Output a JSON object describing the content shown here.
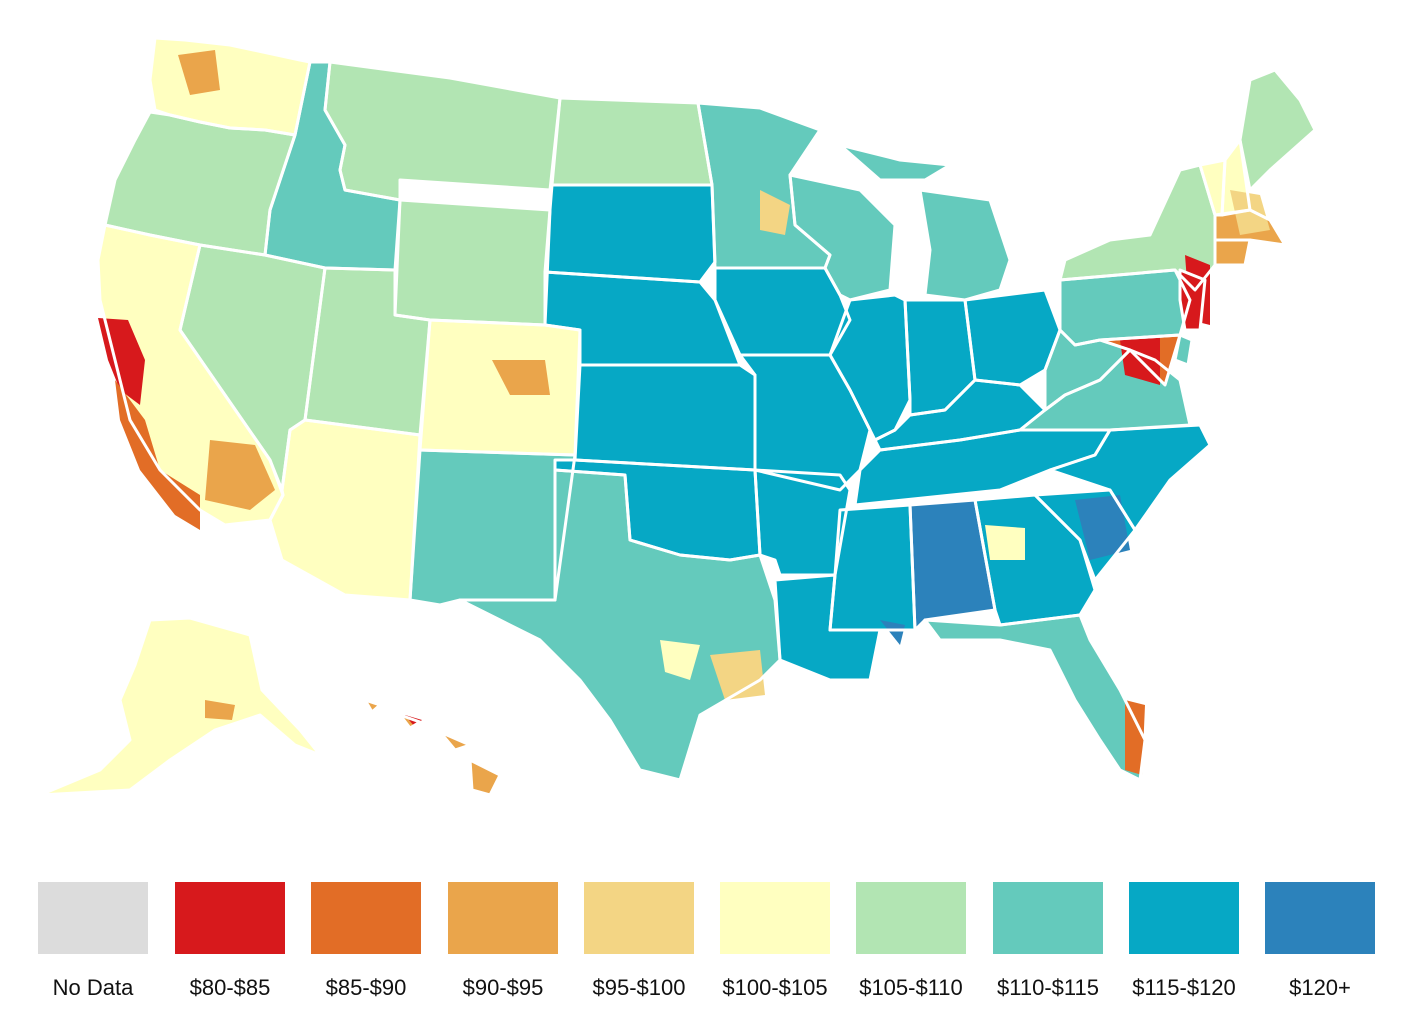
{
  "legend": [
    {
      "label": "No Data",
      "color": "#dcdcdc"
    },
    {
      "label": "$80-$85",
      "color": "#d7191c"
    },
    {
      "label": "$85-$90",
      "color": "#e26d26"
    },
    {
      "label": "$90-$95",
      "color": "#eaa54b"
    },
    {
      "label": "$95-$100",
      "color": "#f3d584"
    },
    {
      "label": "$100-$105",
      "color": "#ffffc0"
    },
    {
      "label": "$105-$110",
      "color": "#b2e5b3"
    },
    {
      "label": "$110-$115",
      "color": "#64cabc"
    },
    {
      "label": "$115-$120",
      "color": "#06a8c5"
    },
    {
      "label": "$120+",
      "color": "#2c82bb"
    }
  ],
  "map": {
    "regions": [
      {
        "name": "Washington",
        "bin": "$100-$105"
      },
      {
        "name": "Oregon",
        "bin": "$105-$110"
      },
      {
        "name": "California",
        "bin": "$100-$105"
      },
      {
        "name": "Nevada",
        "bin": "$105-$110"
      },
      {
        "name": "Idaho",
        "bin": "$110-$115"
      },
      {
        "name": "Montana",
        "bin": "$105-$110"
      },
      {
        "name": "Wyoming",
        "bin": "$105-$110"
      },
      {
        "name": "Utah",
        "bin": "$105-$110"
      },
      {
        "name": "Arizona",
        "bin": "$100-$105"
      },
      {
        "name": "Colorado",
        "bin": "$100-$105"
      },
      {
        "name": "New Mexico",
        "bin": "$110-$115"
      },
      {
        "name": "North Dakota",
        "bin": "$105-$110"
      },
      {
        "name": "South Dakota",
        "bin": "$115-$120"
      },
      {
        "name": "Nebraska",
        "bin": "$115-$120"
      },
      {
        "name": "Kansas",
        "bin": "$115-$120"
      },
      {
        "name": "Oklahoma",
        "bin": "$115-$120"
      },
      {
        "name": "Texas",
        "bin": "$110-$115"
      },
      {
        "name": "Minnesota",
        "bin": "$110-$115"
      },
      {
        "name": "Iowa",
        "bin": "$115-$120"
      },
      {
        "name": "Missouri",
        "bin": "$115-$120"
      },
      {
        "name": "Arkansas",
        "bin": "$115-$120"
      },
      {
        "name": "Louisiana",
        "bin": "$115-$120"
      },
      {
        "name": "Wisconsin",
        "bin": "$110-$115"
      },
      {
        "name": "Illinois",
        "bin": "$115-$120"
      },
      {
        "name": "Michigan",
        "bin": "$110-$115"
      },
      {
        "name": "Indiana",
        "bin": "$115-$120"
      },
      {
        "name": "Ohio",
        "bin": "$115-$120"
      },
      {
        "name": "Kentucky",
        "bin": "$115-$120"
      },
      {
        "name": "Tennessee",
        "bin": "$115-$120"
      },
      {
        "name": "Mississippi",
        "bin": "$115-$120"
      },
      {
        "name": "Alabama",
        "bin": "$120+"
      },
      {
        "name": "Georgia",
        "bin": "$115-$120"
      },
      {
        "name": "Florida",
        "bin": "$110-$115"
      },
      {
        "name": "South Carolina",
        "bin": "$115-$120"
      },
      {
        "name": "North Carolina",
        "bin": "$115-$120"
      },
      {
        "name": "Virginia",
        "bin": "$110-$115"
      },
      {
        "name": "West Virginia",
        "bin": "$110-$115"
      },
      {
        "name": "Pennsylvania",
        "bin": "$110-$115"
      },
      {
        "name": "New York",
        "bin": "$105-$110"
      },
      {
        "name": "Vermont",
        "bin": "$100-$105"
      },
      {
        "name": "New Hampshire",
        "bin": "$100-$105"
      },
      {
        "name": "Maine",
        "bin": "$105-$110"
      },
      {
        "name": "Massachusetts",
        "bin": "$90-$95"
      },
      {
        "name": "Connecticut",
        "bin": "$90-$95"
      },
      {
        "name": "New Jersey",
        "bin": "$80-$85"
      },
      {
        "name": "Maryland",
        "bin": "$85-$90"
      },
      {
        "name": "Delaware",
        "bin": "$110-$115"
      },
      {
        "name": "Alaska",
        "bin": "$100-$105"
      },
      {
        "name": "Hawaii",
        "bin": "$90-$95"
      }
    ]
  }
}
